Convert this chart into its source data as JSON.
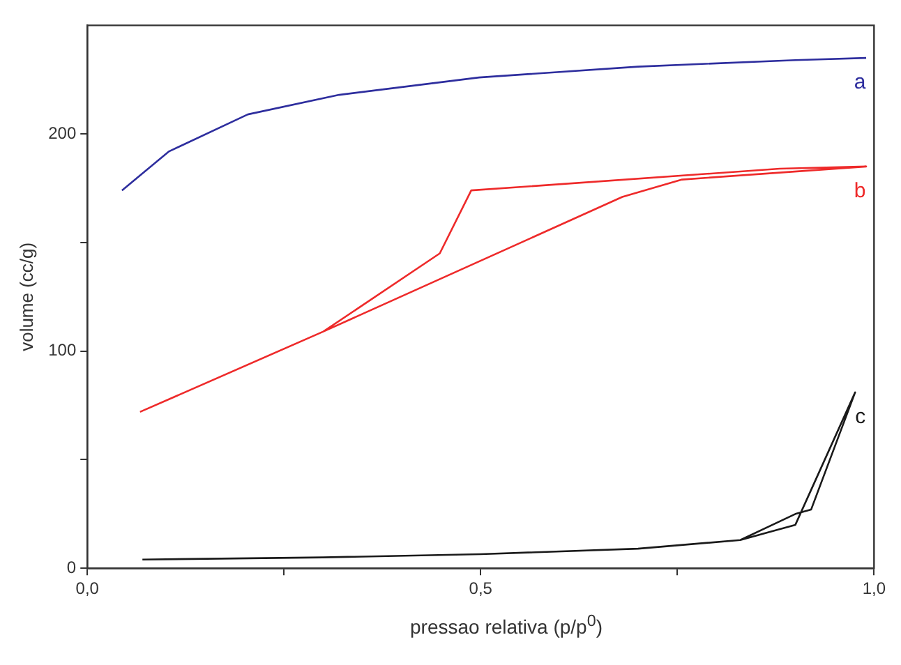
{
  "chart_data": {
    "type": "line",
    "xlabel": "pressao relativa (p/p$^{0}$)",
    "ylabel": "volume (cc/g)",
    "xlim": [
      0,
      1
    ],
    "xticks": [
      {
        "value": 0,
        "label": "0,0"
      },
      {
        "value": 0.25,
        "label": null
      },
      {
        "value": 0.5,
        "label": "0,5"
      },
      {
        "value": 0.75,
        "label": null
      },
      {
        "value": 1,
        "label": "1,0"
      }
    ],
    "ylim": [
      0,
      250
    ],
    "yticks": [
      0,
      {
        "value": 50,
        "label": null
      },
      100,
      {
        "value": 150,
        "label": null
      },
      200
    ],
    "grid": false,
    "legend": false,
    "marker": "none",
    "line_style": "solid",
    "series": [
      {
        "name": "a",
        "color": "#2e2e9e",
        "x": [
          0.044,
          0.104,
          0.204,
          0.32,
          0.498,
          0.7,
          0.9,
          0.99
        ],
        "values": [
          174,
          192,
          209,
          218,
          226,
          231,
          234,
          235
        ]
      },
      {
        "name": "b",
        "color": "#ee2a2a",
        "x": [
          0.067,
          0.3,
          0.68,
          0.756,
          0.99,
          0.88,
          0.488,
          0.448,
          0.3
        ],
        "values": [
          72,
          109,
          171,
          179,
          185,
          184,
          174,
          145,
          109
        ]
      },
      {
        "name": "c",
        "color": "#1a1a1a",
        "x": [
          0.07,
          0.3,
          0.5,
          0.7,
          0.83,
          0.9,
          0.976,
          0.92,
          0.9,
          0.83
        ],
        "values": [
          4,
          5,
          6.5,
          9,
          13,
          20,
          81,
          27,
          25,
          13
        ]
      }
    ]
  }
}
